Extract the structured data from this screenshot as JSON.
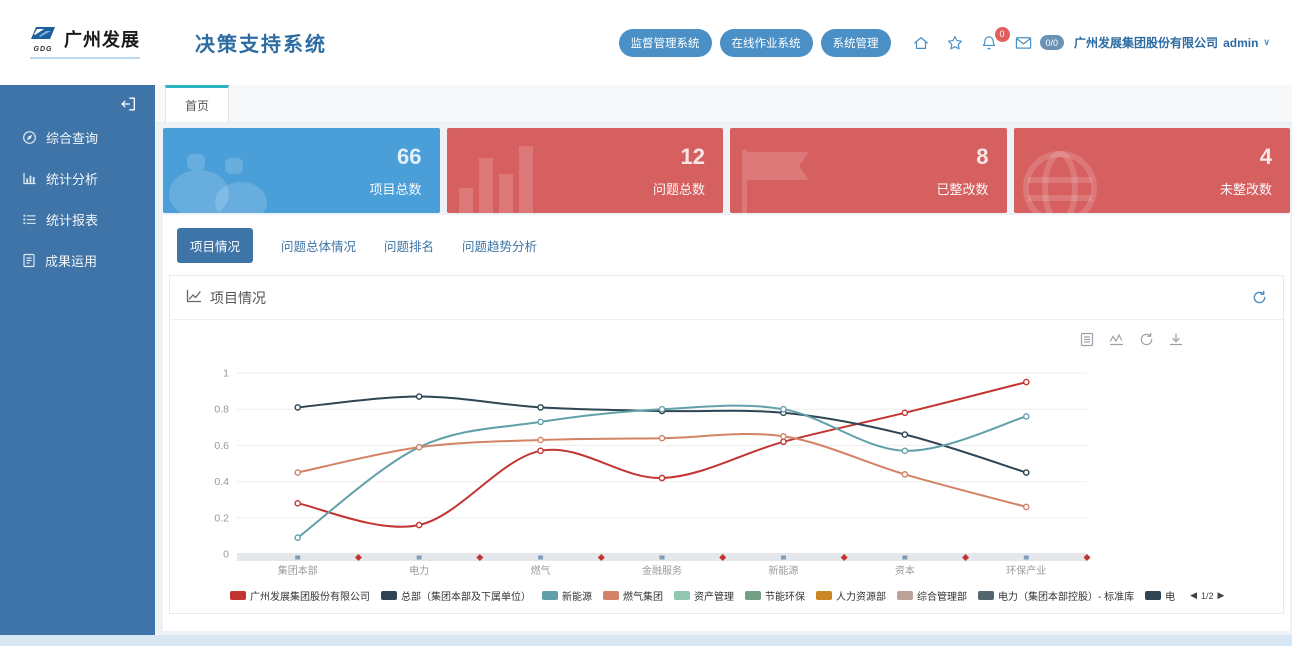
{
  "header": {
    "logo": {
      "text": "广州发展",
      "sub": "GDG"
    },
    "title": "决策支持系统",
    "system_links": [
      "监督管理系统",
      "在线作业系统",
      "系统管理"
    ],
    "bell_badge": "0",
    "mail_badge": "0/0",
    "company": "广州发展集团股份有限公司",
    "user": "admin"
  },
  "sidebar": {
    "items": [
      {
        "label": "综合查询",
        "icon": "compass-icon"
      },
      {
        "label": "统计分析",
        "icon": "bar-chart-icon"
      },
      {
        "label": "统计报表",
        "icon": "list-icon"
      },
      {
        "label": "成果运用",
        "icon": "document-icon"
      }
    ]
  },
  "page_tab": "首页",
  "stat_cards": [
    {
      "value": "66",
      "label": "项目总数",
      "color": "#4b9fd9",
      "icon": "binoculars"
    },
    {
      "value": "12",
      "label": "问题总数",
      "color": "#d65f5f",
      "icon": "bars"
    },
    {
      "value": "8",
      "label": "已整改数",
      "color": "#d65f5f",
      "icon": "flag"
    },
    {
      "value": "4",
      "label": "未整改数",
      "color": "#d65f5f",
      "icon": "globe"
    }
  ],
  "section_tabs": [
    {
      "label": "项目情况",
      "active": true
    },
    {
      "label": "问题总体情况",
      "active": false
    },
    {
      "label": "问题排名",
      "active": false
    },
    {
      "label": "问题趋势分析",
      "active": false
    }
  ],
  "panel": {
    "title": "项目情况"
  },
  "chart_data": {
    "type": "line",
    "title": "项目情况",
    "categories": [
      "集团本部",
      "电力",
      "燃气",
      "金融服务",
      "新能源",
      "资本",
      "环保产业"
    ],
    "ylim": [
      0,
      1
    ],
    "yticks": [
      "0",
      "0.2",
      "0.4",
      "0.6",
      "0.8",
      "1"
    ],
    "grid": true,
    "legend_position": "bottom",
    "smooth": true,
    "series": [
      {
        "name": "广州发展集团股份有限公司",
        "color": "#c23531",
        "values": [
          0.28,
          0.16,
          0.57,
          0.42,
          0.62,
          0.78,
          0.95
        ]
      },
      {
        "name": "总部（集团本部及下属单位）",
        "color": "#2f4554",
        "values": [
          0.81,
          0.87,
          0.81,
          0.79,
          0.78,
          0.66,
          0.45
        ]
      },
      {
        "name": "新能源",
        "color": "#61a0a8",
        "values": [
          0.09,
          0.59,
          0.73,
          0.8,
          0.8,
          0.57,
          0.76
        ]
      },
      {
        "name": "燃气集团",
        "color": "#d48265",
        "values": [
          0.45,
          0.59,
          0.63,
          0.64,
          0.65,
          0.44,
          0.26
        ]
      }
    ],
    "legend": [
      {
        "name": "广州发展集团股份有限公司",
        "color": "#c23531"
      },
      {
        "name": "总部（集团本部及下属单位）",
        "color": "#2f4554"
      },
      {
        "name": "新能源",
        "color": "#61a0a8"
      },
      {
        "name": "燃气集团",
        "color": "#d48265"
      },
      {
        "name": "资产管理",
        "color": "#91c7ae"
      },
      {
        "name": "节能环保",
        "color": "#749f83"
      },
      {
        "name": "人力资源部",
        "color": "#ca8622"
      },
      {
        "name": "综合管理部",
        "color": "#bda29a"
      },
      {
        "name": "电力（集团本部控股）- 标准库",
        "color": "#546570"
      },
      {
        "name": "电",
        "color": "#2f4554"
      }
    ],
    "legend_pager": {
      "prev": "◀",
      "page": "1/2",
      "next": "▶"
    }
  },
  "colors": {
    "sidebar": "#3e74a7",
    "card_blue": "#4b9fd9",
    "card_red": "#d65f5f",
    "accent_blue": "#4a90c6",
    "title_blue": "#2d6ca2",
    "tab_teal": "#2bb3c0",
    "badge_red": "#e25d5d",
    "content_bg": "#eef1f5",
    "strip": "#d7e7f4"
  }
}
